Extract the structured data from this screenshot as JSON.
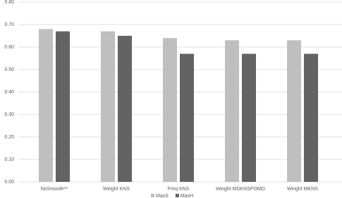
{
  "chart_data": {
    "type": "bar",
    "categories": [
      "NoSmooth**",
      "Weight KNS",
      "Freq KNS",
      "Weight MDKNSPOMD",
      "Weight MKNS"
    ],
    "series": [
      {
        "name": "MaxS",
        "color": "#bfbfbf",
        "values": [
          0.68,
          0.67,
          0.64,
          0.63,
          0.63
        ]
      },
      {
        "name": "MaxH",
        "color": "#636363",
        "values": [
          0.67,
          0.65,
          0.57,
          0.57,
          0.57
        ]
      }
    ],
    "ylim": [
      0,
      0.8
    ],
    "yticks": [
      {
        "value": 0,
        "label": "0.00"
      },
      {
        "value": 0.1,
        "label": "0.10"
      },
      {
        "value": 0.2,
        "label": "0.20"
      },
      {
        "value": 0.3,
        "label": "0.30"
      },
      {
        "value": 0.4,
        "label": "0.40"
      },
      {
        "value": 0.5,
        "label": "0.50"
      },
      {
        "value": 0.6,
        "label": "0.60"
      },
      {
        "value": 0.7,
        "label": "0.70"
      },
      {
        "value": 0.8,
        "label": "0.80"
      }
    ],
    "grid": true,
    "legend": "bottom"
  }
}
